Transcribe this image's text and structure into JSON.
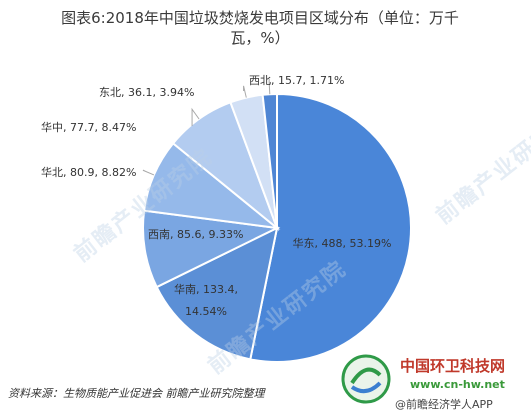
{
  "title_line1": "图表6:2018年中国垃圾焚烧发电项目区域分布（单位：万千",
  "title_line2": "瓦，%）",
  "chart_data": {
    "type": "pie",
    "title": "图表6:2018年中国垃圾焚烧发电项目区域分布（单位：万千瓦，%）",
    "categories": [
      "华东",
      "华南",
      "西南",
      "华北",
      "华中",
      "东北",
      "西北"
    ],
    "values": [
      488,
      133.4,
      85.6,
      80.9,
      77.7,
      36.1,
      15.7
    ],
    "percents": [
      53.19,
      14.54,
      9.33,
      8.82,
      8.47,
      3.94,
      1.71
    ],
    "labels": [
      "华东, 488, 53.19%",
      "华南, 133.4, 14.54%",
      "西南, 85.6, 9.33%",
      "华北, 80.9, 8.82%",
      "华中, 77.7, 8.47%",
      "东北, 36.1, 3.94%",
      "西北, 15.7, 1.71%"
    ],
    "colors": [
      "#4a86d8",
      "#5b8fd6",
      "#7aa6e2",
      "#95b9ea",
      "#b3ccf0",
      "#d2e0f5",
      "#4f86d4"
    ]
  },
  "watermark": "前瞻产业研究院",
  "source": "资料来源：生物质能产业促进会  前瞻产业研究院整理",
  "brand": {
    "name": "中国环卫科技网",
    "url": "www.cn-hw.net",
    "app": "@前瞻经济学人APP"
  }
}
